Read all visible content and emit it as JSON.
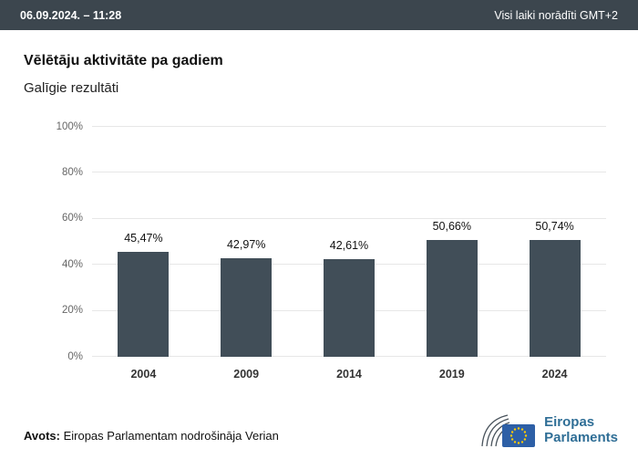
{
  "header": {
    "datetime": "06.09.2024. – 11:28",
    "timezone_note": "Visi laiki norādīti GMT+2"
  },
  "chart_data": {
    "type": "bar",
    "title": "Vēlētāju aktivitāte pa gadiem",
    "subtitle": "Galīgie rezultāti",
    "categories": [
      "2004",
      "2009",
      "2014",
      "2019",
      "2024"
    ],
    "values": [
      45.47,
      42.97,
      42.61,
      50.66,
      50.74
    ],
    "value_labels": [
      "45,47%",
      "42,97%",
      "42,61%",
      "50,66%",
      "50,74%"
    ],
    "ylim": [
      0,
      100
    ],
    "ytick_labels": [
      "100%",
      "80%",
      "60%",
      "40%",
      "20%",
      "0%"
    ],
    "grid": true,
    "legend": "none",
    "bar_color": "#414e58"
  },
  "colors": {
    "header_bg": "#3c464e",
    "bar": "#414e58",
    "gridline": "#e7e7e7",
    "logo_blue": "#2f6e96",
    "flag_blue": "#2d5fa6",
    "star_yellow": "#ffcc00"
  },
  "footer": {
    "source_label": "Avots:",
    "source_text": " Eiropas Parlamentam nodrošināja Verian",
    "logo_line1": "Eiropas",
    "logo_line2": "Parlaments"
  }
}
